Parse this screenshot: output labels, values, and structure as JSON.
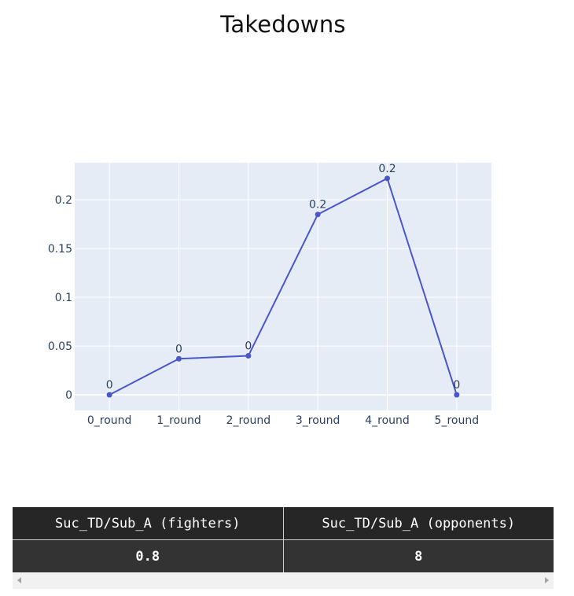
{
  "title": "Takedowns",
  "chart_data": {
    "type": "line",
    "title": "Takedowns",
    "xlabel": "",
    "ylabel": "",
    "categories": [
      "0_round",
      "1_round",
      "2_round",
      "3_round",
      "4_round",
      "5_round"
    ],
    "values": [
      0,
      0.037,
      0.04,
      0.185,
      0.222,
      0
    ],
    "data_labels": [
      "0",
      "0",
      "0",
      "0.2",
      "0.2",
      "0"
    ],
    "yticks": [
      0,
      0.05,
      0.1,
      0.15,
      0.2
    ],
    "ytick_labels": [
      "0",
      "0.05",
      "0.1",
      "0.15",
      "0.2"
    ],
    "ylim": [
      -0.016,
      0.238
    ],
    "grid": true,
    "line_color": "#4a56c9",
    "plot_bgcolor": "#e5ecf6"
  },
  "table": {
    "headers": [
      "Suc_TD/Sub_A (fighters)",
      "Suc_TD/Sub_A (opponents)"
    ],
    "rows": [
      [
        "0.8",
        "8"
      ]
    ]
  },
  "scrollbar": {
    "left_icon": "chevron-left-icon",
    "right_icon": "chevron-right-icon"
  }
}
